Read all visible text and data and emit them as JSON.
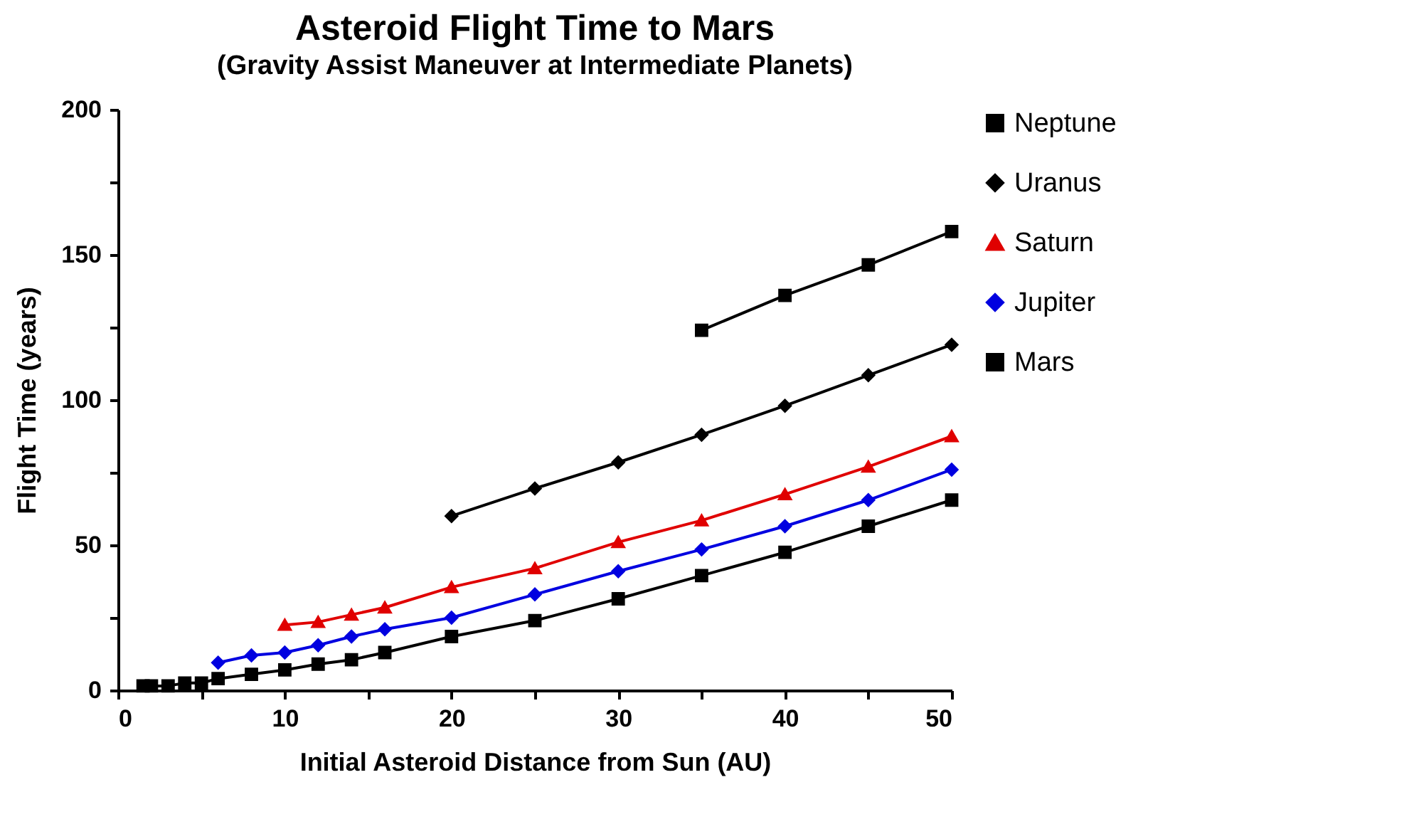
{
  "chart_data": {
    "type": "line",
    "title": "Asteroid Flight Time to Mars",
    "subtitle": "(Gravity Assist Maneuver at Intermediate Planets)",
    "xlabel": "Initial Asteroid Distance from Sun (AU)",
    "ylabel": "Flight Time (years)",
    "xlim": [
      0,
      50
    ],
    "xticks": [
      0,
      {
        "value": 5,
        "label": null
      },
      10,
      {
        "value": 15,
        "label": null
      },
      20,
      {
        "value": 25,
        "label": null
      },
      30,
      {
        "value": 35,
        "label": null
      },
      40,
      {
        "value": 45,
        "label": null
      },
      50
    ],
    "ylim": [
      0,
      200
    ],
    "yticks": [
      0,
      {
        "value": 25,
        "label": null
      },
      50,
      {
        "value": 75,
        "label": null
      },
      100,
      {
        "value": 125,
        "label": null
      },
      150,
      {
        "value": 175,
        "label": null
      },
      200
    ],
    "grid": false,
    "legend": "right",
    "line_style": "solid",
    "series": [
      {
        "name": "Neptune",
        "color": "#000000",
        "marker": "square",
        "x": [
          35,
          40,
          45,
          50
        ],
        "values": [
          124,
          136,
          146.5,
          158
        ]
      },
      {
        "name": "Uranus",
        "color": "#000000",
        "marker": "diamond",
        "x": [
          20,
          25,
          30,
          35,
          40,
          45,
          50
        ],
        "values": [
          60,
          69.5,
          78.5,
          88,
          98,
          108.5,
          119
        ]
      },
      {
        "name": "Saturn",
        "color": "#e00000",
        "marker": "triangle",
        "x": [
          10,
          12,
          14,
          16,
          20,
          25,
          30,
          35,
          40,
          45,
          50
        ],
        "values": [
          22.5,
          23.5,
          26,
          28.5,
          35.5,
          42,
          51,
          58.5,
          67.5,
          77,
          87.5
        ]
      },
      {
        "name": "Jupiter",
        "color": "#0000e0",
        "marker": "diamond",
        "x": [
          6,
          8,
          10,
          12,
          14,
          16,
          20,
          25,
          30,
          35,
          40,
          45,
          50
        ],
        "values": [
          9.5,
          12,
          13,
          15.5,
          18.5,
          21,
          25,
          33,
          41,
          48.5,
          56.5,
          65.5,
          76
        ]
      },
      {
        "name": "Mars",
        "color": "#000000",
        "marker": "square",
        "x": [
          1.5,
          2,
          3,
          4,
          5,
          6,
          8,
          10,
          12,
          14,
          16,
          20,
          25,
          30,
          35,
          40,
          45,
          50
        ],
        "values": [
          1.5,
          1.5,
          1.5,
          2.5,
          2.5,
          4,
          5.5,
          7,
          9,
          10.5,
          13,
          18.5,
          24,
          31.5,
          39.5,
          47.5,
          56.5,
          65.5
        ]
      }
    ]
  }
}
